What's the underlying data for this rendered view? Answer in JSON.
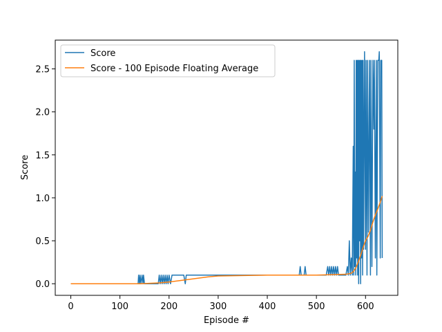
{
  "chart_data": {
    "type": "line",
    "xlabel": "Episode #",
    "ylabel": "Score",
    "xlim": [
      -31.7,
      665.7
    ],
    "ylim": [
      -0.135,
      2.835
    ],
    "xticks": [
      0,
      100,
      200,
      300,
      400,
      500,
      600
    ],
    "yticks": [
      {
        "value": 0,
        "label": "0.0"
      },
      0.5,
      {
        "value": 1,
        "label": "1.0"
      },
      1.5,
      {
        "value": 2,
        "label": "2.0"
      },
      2.5
    ],
    "legend": "upper left",
    "grid": false,
    "series": [
      {
        "name": "Score",
        "color": "#1f77b4",
        "x": [
          0,
          137,
          138,
          140,
          141,
          143,
          145,
          147,
          148,
          150,
          178,
          180,
          182,
          184,
          186,
          188,
          190,
          192,
          194,
          196,
          198,
          200,
          203,
          206,
          210,
          215,
          220,
          225,
          230,
          233,
          235,
          238,
          245,
          260,
          300,
          350,
          400,
          440,
          465,
          467,
          469,
          472,
          475,
          477,
          479,
          482,
          520,
          523,
          525,
          527,
          529,
          531,
          533,
          535,
          537,
          539,
          541,
          543,
          545,
          548,
          555,
          560,
          563,
          565,
          567,
          569,
          571,
          573,
          575,
          576,
          577,
          578,
          579,
          580,
          581,
          582,
          583,
          584,
          585,
          586,
          587,
          588,
          589,
          590,
          591,
          592,
          593,
          594,
          595,
          596,
          598,
          600,
          601,
          603,
          604,
          606,
          608,
          610,
          611,
          613,
          615,
          617,
          618,
          620,
          622,
          623,
          625,
          627,
          628,
          630,
          631,
          633,
          634
        ],
        "values": [
          0,
          0,
          0.1,
          0,
          0.1,
          0,
          0.1,
          0,
          0.1,
          0,
          0,
          0.1,
          0,
          0.1,
          0,
          0.1,
          0,
          0.1,
          0,
          0.1,
          0,
          0.1,
          0,
          0.1,
          0.1,
          0.1,
          0.1,
          0.1,
          0.1,
          0,
          0.1,
          0.1,
          0.1,
          0.1,
          0.1,
          0.1,
          0.1,
          0.1,
          0.1,
          0.2,
          0.1,
          0.1,
          0.1,
          0.2,
          0.1,
          0.1,
          0.1,
          0.2,
          0.1,
          0.2,
          0.1,
          0.2,
          0.1,
          0.2,
          0.1,
          0.2,
          0.1,
          0.2,
          0.1,
          0.1,
          0.1,
          0.1,
          0.2,
          0.1,
          0.5,
          0.1,
          0.3,
          0.1,
          1.6,
          0.1,
          2.6,
          0.2,
          1.3,
          0.1,
          2.6,
          0.3,
          2.6,
          0.1,
          2.6,
          0,
          2.6,
          0.5,
          2.6,
          0,
          2.6,
          0.3,
          2.6,
          0.1,
          2.6,
          0.4,
          2.7,
          0.4,
          2.6,
          0.1,
          2.6,
          0.6,
          2.6,
          0.1,
          2.6,
          0.2,
          2.6,
          1.8,
          2.6,
          0.3,
          2.6,
          0.1,
          2.6,
          2.6,
          2.7,
          0.3,
          2.6,
          2.6,
          0.3
        ]
      },
      {
        "name": "Score - 100 Episode Floating Average",
        "color": "#ff7f0e",
        "x": [
          0,
          140,
          160,
          180,
          200,
          220,
          240,
          260,
          280,
          300,
          350,
          400,
          500,
          560,
          570,
          575,
          580,
          585,
          590,
          595,
          600,
          605,
          610,
          615,
          620,
          625,
          630,
          634
        ],
        "values": [
          0,
          0,
          0.005,
          0.01,
          0.02,
          0.035,
          0.05,
          0.065,
          0.08,
          0.09,
          0.095,
          0.1,
          0.1,
          0.11,
          0.12,
          0.14,
          0.18,
          0.25,
          0.33,
          0.42,
          0.5,
          0.55,
          0.62,
          0.72,
          0.8,
          0.87,
          0.95,
          1.02
        ]
      }
    ]
  }
}
